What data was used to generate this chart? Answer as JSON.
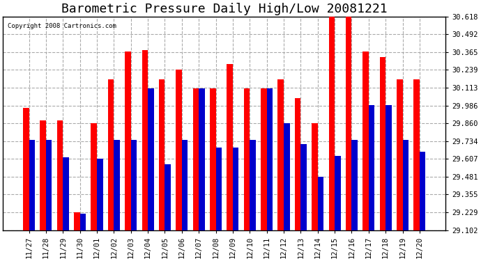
{
  "title": "Barometric Pressure Daily High/Low 20081221",
  "copyright": "Copyright 2008 Cartronics.com",
  "dates": [
    "11/27",
    "11/28",
    "11/29",
    "11/30",
    "12/01",
    "12/02",
    "12/03",
    "12/04",
    "12/05",
    "12/06",
    "12/07",
    "12/08",
    "12/09",
    "12/10",
    "12/11",
    "12/12",
    "12/13",
    "12/14",
    "12/15",
    "12/16",
    "12/17",
    "12/18",
    "12/19",
    "12/20"
  ],
  "highs": [
    29.97,
    29.88,
    29.88,
    29.23,
    29.86,
    30.17,
    30.37,
    30.38,
    30.17,
    30.24,
    30.11,
    30.11,
    30.28,
    30.11,
    30.11,
    30.17,
    30.04,
    29.86,
    30.62,
    30.62,
    30.37,
    30.33,
    30.17,
    30.17
  ],
  "lows": [
    29.74,
    29.74,
    29.62,
    29.22,
    29.61,
    29.74,
    29.74,
    30.11,
    29.57,
    29.74,
    30.11,
    29.69,
    29.69,
    29.74,
    30.11,
    29.86,
    29.71,
    29.48,
    29.63,
    29.74,
    29.99,
    29.99,
    29.74,
    29.66
  ],
  "high_color": "#ff0000",
  "low_color": "#0000cc",
  "bg_color": "#ffffff",
  "plot_bg_color": "#ffffff",
  "ymin": 29.102,
  "ymax": 30.618,
  "yticks": [
    29.102,
    29.229,
    29.355,
    29.481,
    29.607,
    29.734,
    29.86,
    29.986,
    30.113,
    30.239,
    30.365,
    30.492,
    30.618
  ],
  "grid_color": "#aaaaaa",
  "title_fontsize": 13,
  "tick_fontsize": 7.5,
  "bar_width": 0.35
}
